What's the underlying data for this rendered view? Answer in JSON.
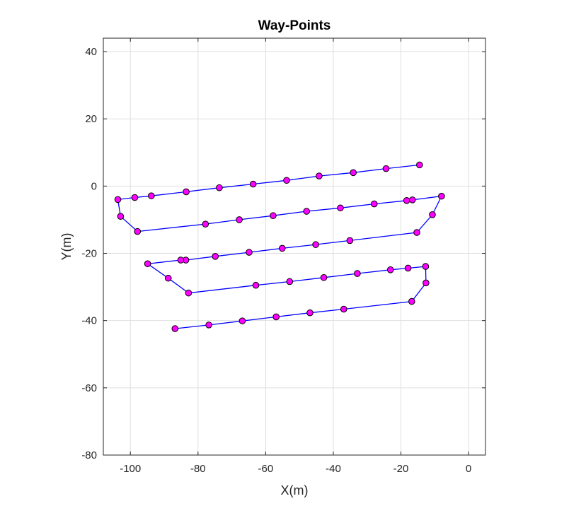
{
  "chart_data": {
    "type": "line",
    "title": "Way-Points",
    "xlabel": "X(m)",
    "ylabel": "Y(m)",
    "xlim": [
      -108,
      5
    ],
    "ylim": [
      -80,
      44
    ],
    "xticks": [
      -100,
      -80,
      -60,
      -40,
      -20,
      0
    ],
    "yticks": [
      40,
      20,
      0,
      -20,
      -40,
      -60,
      -80
    ],
    "grid": true,
    "line_color": "#0000ff",
    "marker_face_color": "#ff00ff",
    "marker_edge_color": "#000000",
    "series": [
      {
        "x": [
          -14.5,
          -24.4,
          -34.1,
          -44.2,
          -53.8,
          -63.7,
          -73.7,
          -83.5,
          -93.8,
          -98.7,
          -103.7,
          -102.9,
          -97.9,
          -77.8,
          -67.8,
          -57.8,
          -47.9,
          -37.9,
          -27.9,
          -18.3,
          -16.6,
          -8.0,
          -10.7,
          -15.3,
          -35.1,
          -45.2,
          -55.1,
          -64.9,
          -74.9,
          -83.6,
          -85.1,
          -94.9,
          -88.8,
          -82.8,
          -62.9,
          -52.9,
          -42.8,
          -32.9,
          -23.1,
          -17.9,
          -12.7,
          -12.6,
          -16.8,
          -36.9,
          -46.9,
          -56.9,
          -66.9,
          -76.8,
          -86.8
        ],
        "y": [
          6.3,
          5.2,
          4.0,
          3.0,
          1.7,
          0.6,
          -0.5,
          -1.7,
          -2.9,
          -3.4,
          -4.0,
          -9.0,
          -13.5,
          -11.3,
          -10.0,
          -8.8,
          -7.5,
          -6.5,
          -5.3,
          -4.3,
          -4.1,
          -3.0,
          -8.5,
          -13.8,
          -16.2,
          -17.4,
          -18.5,
          -19.7,
          -20.9,
          -22.0,
          -22.0,
          -23.1,
          -27.4,
          -31.8,
          -29.5,
          -28.4,
          -27.2,
          -26.0,
          -24.9,
          -24.4,
          -23.9,
          -28.8,
          -34.3,
          -36.6,
          -37.7,
          -38.9,
          -40.1,
          -41.3,
          -42.4
        ]
      }
    ]
  }
}
